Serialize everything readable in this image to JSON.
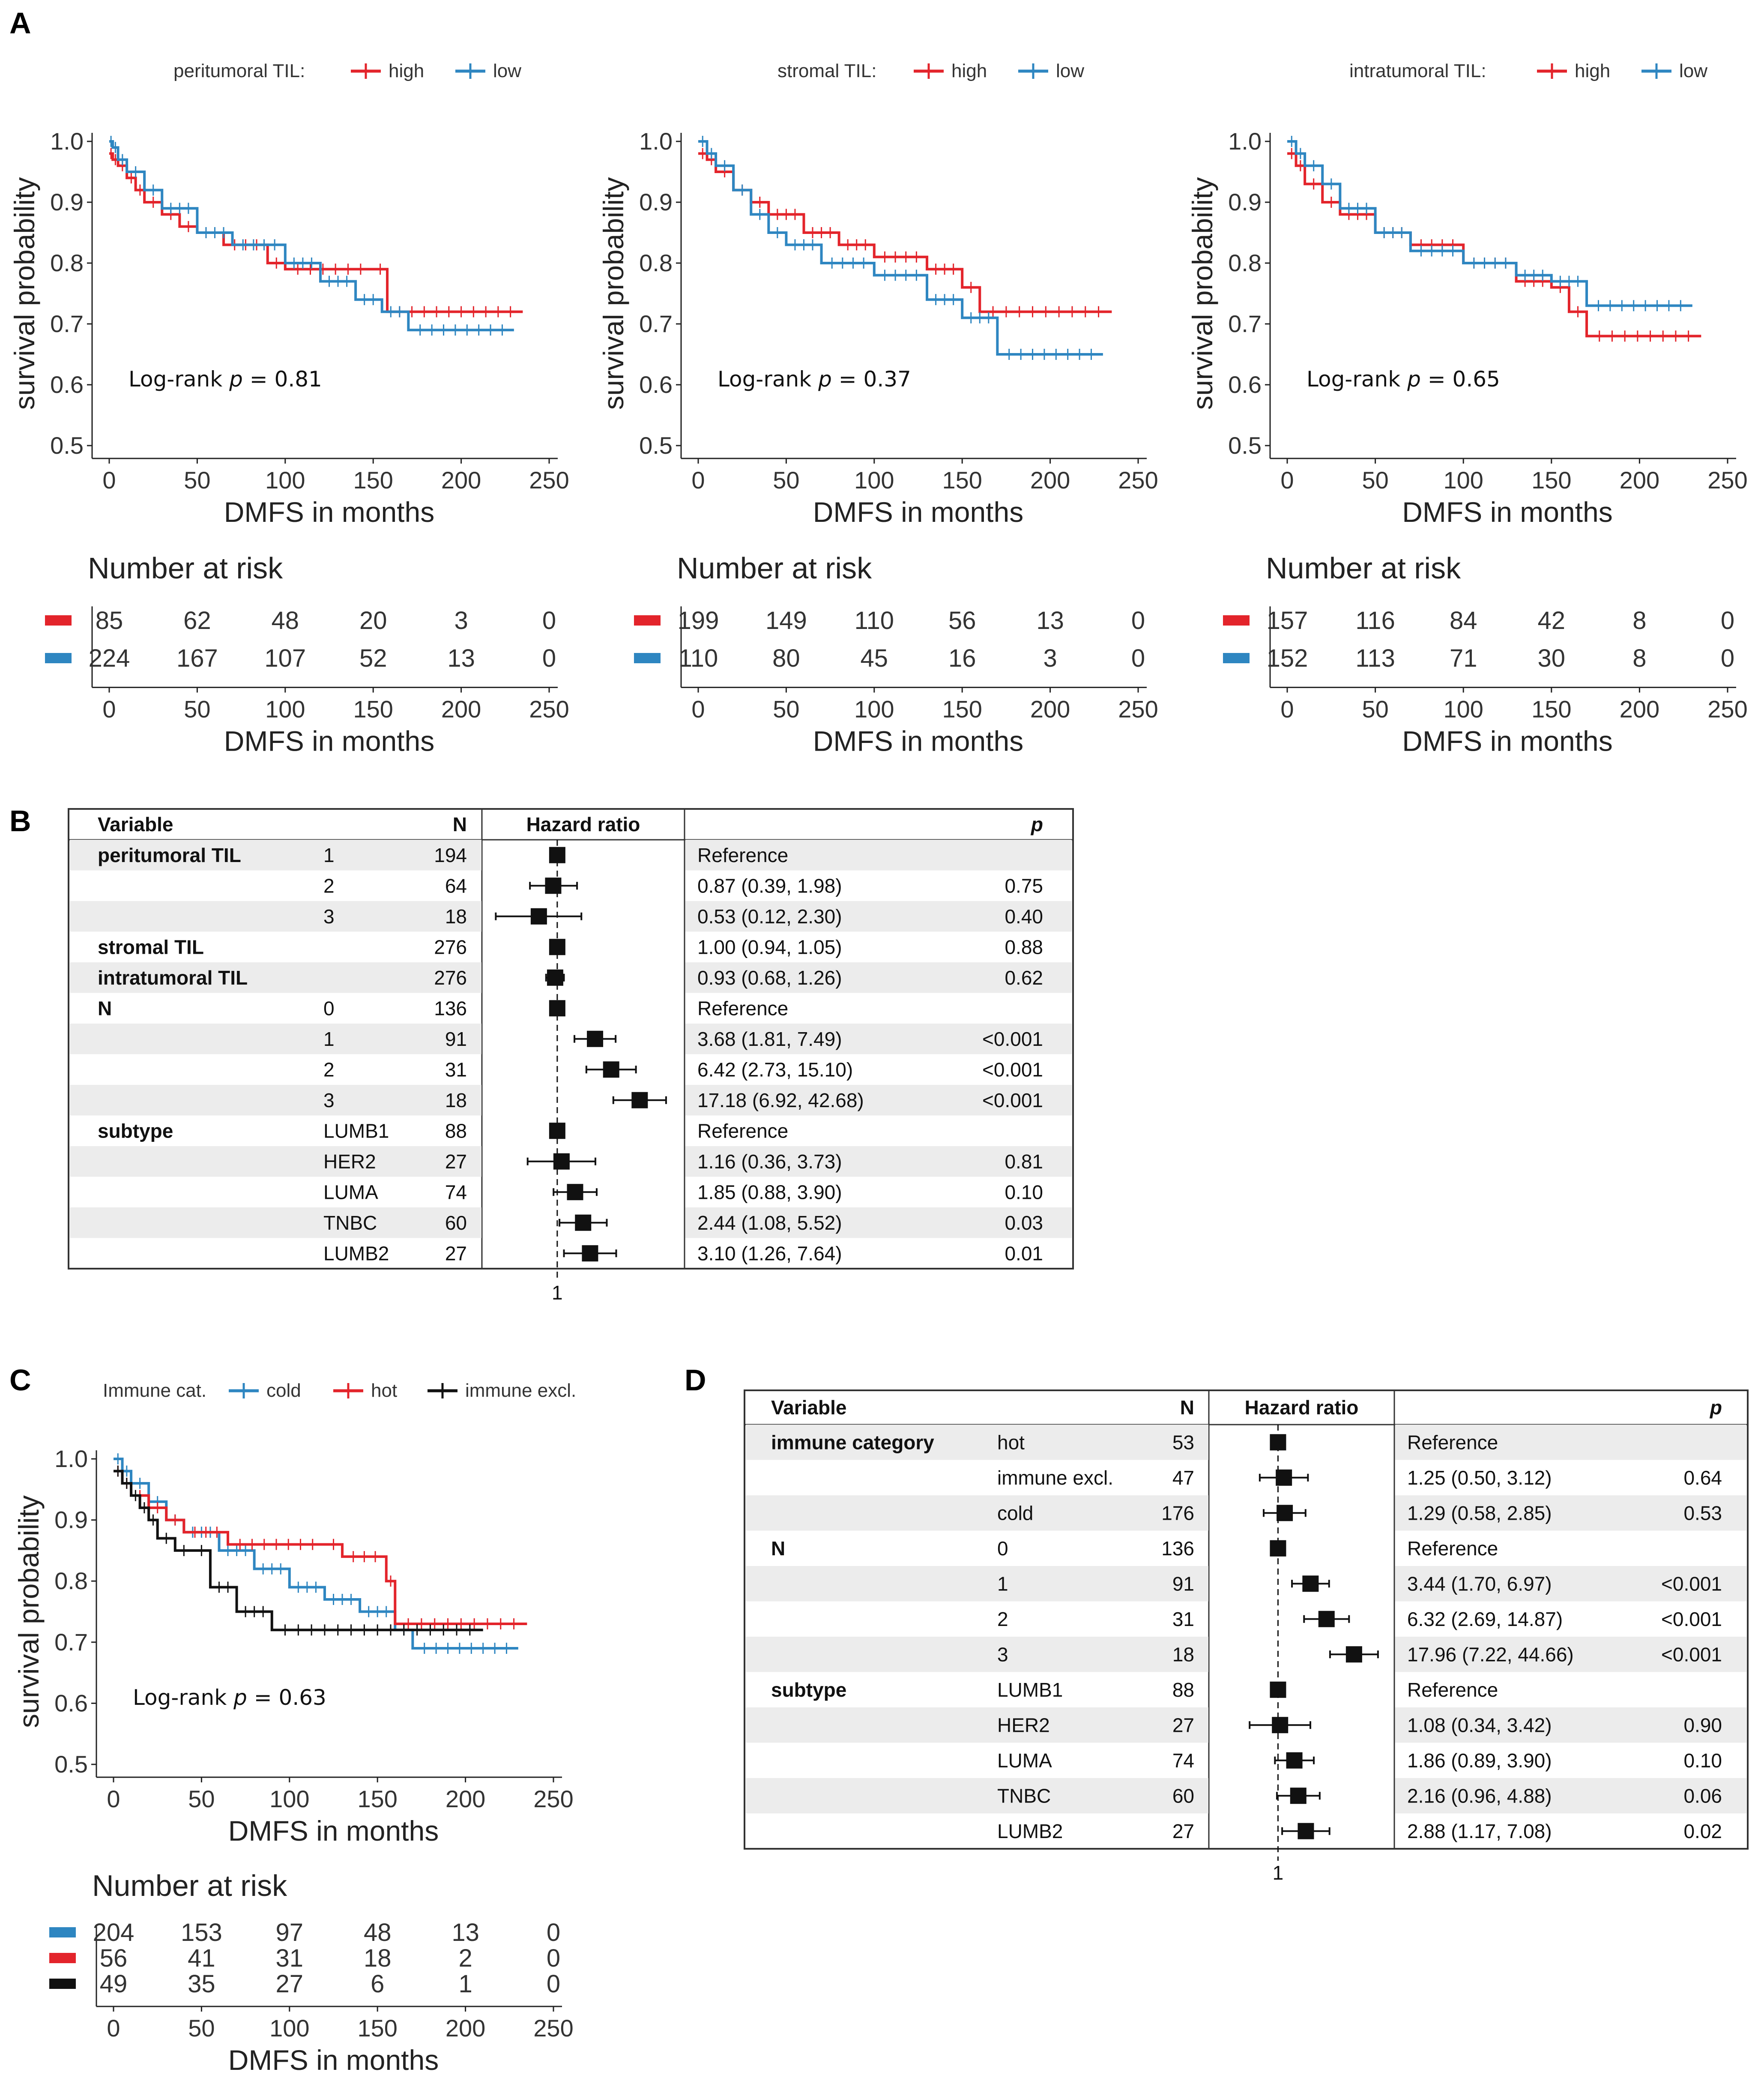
{
  "panel_letters": [
    "A",
    "B",
    "C",
    "D"
  ],
  "chart_data": [
    {
      "type": "line",
      "panel": "A",
      "legend_title": "peritumoral TIL:",
      "xlabel": "DMFS in months",
      "ylabel": "survival probability",
      "xticks": [
        0,
        50,
        100,
        150,
        200,
        250
      ],
      "yticks": [
        0.5,
        0.6,
        0.7,
        0.8,
        0.9,
        1.0
      ],
      "ytick_labels": [
        "0.5",
        "0.6",
        "0.7",
        "0.8",
        "0.9",
        "1.0"
      ],
      "xlim": [
        0,
        250
      ],
      "ylim": [
        0.5,
        1.0
      ],
      "annotation": {
        "prefix": "Log-rank ",
        "italic": "p",
        "suffix": " = 0.81"
      },
      "series": [
        {
          "name": "high",
          "color": "#e3242b",
          "x": [
            0,
            2,
            5,
            10,
            15,
            20,
            30,
            40,
            50,
            65,
            90,
            100,
            150,
            158,
            235
          ],
          "y": [
            0.98,
            0.97,
            0.96,
            0.94,
            0.92,
            0.9,
            0.88,
            0.86,
            0.85,
            0.83,
            0.8,
            0.79,
            0.79,
            0.72,
            0.72
          ]
        },
        {
          "name": "low",
          "color": "#2e86c1",
          "x": [
            0,
            2,
            5,
            10,
            20,
            30,
            50,
            70,
            100,
            120,
            140,
            155,
            170,
            230
          ],
          "y": [
            1.0,
            0.99,
            0.97,
            0.95,
            0.92,
            0.89,
            0.85,
            0.83,
            0.8,
            0.77,
            0.74,
            0.72,
            0.69,
            0.69
          ]
        }
      ],
      "risk_table": {
        "title": "Number at risk",
        "xticks": [
          0,
          50,
          100,
          150,
          200,
          250
        ],
        "rows": [
          {
            "name": "high",
            "color": "#e3242b",
            "values": [
              "85",
              "62",
              "48",
              "20",
              "3",
              "0"
            ]
          },
          {
            "name": "low",
            "color": "#2e86c1",
            "values": [
              "224",
              "167",
              "107",
              "52",
              "13",
              "0"
            ]
          }
        ]
      }
    },
    {
      "type": "line",
      "panel": "A",
      "legend_title": "stromal TIL:",
      "xlabel": "DMFS in months",
      "ylabel": "survival probability",
      "xticks": [
        0,
        50,
        100,
        150,
        200,
        250
      ],
      "yticks": [
        0.5,
        0.6,
        0.7,
        0.8,
        0.9,
        1.0
      ],
      "ytick_labels": [
        "0.5",
        "0.6",
        "0.7",
        "0.8",
        "0.9",
        "1.0"
      ],
      "xlim": [
        0,
        250
      ],
      "ylim": [
        0.5,
        1.0
      ],
      "annotation": {
        "prefix": "Log-rank ",
        "italic": "p",
        "suffix": " = 0.37"
      },
      "series": [
        {
          "name": "high",
          "color": "#e3242b",
          "x": [
            0,
            5,
            10,
            20,
            30,
            40,
            60,
            80,
            100,
            130,
            150,
            160,
            235
          ],
          "y": [
            0.98,
            0.97,
            0.95,
            0.92,
            0.9,
            0.88,
            0.85,
            0.83,
            0.81,
            0.79,
            0.76,
            0.72,
            0.72
          ]
        },
        {
          "name": "low",
          "color": "#2e86c1",
          "x": [
            0,
            5,
            10,
            20,
            30,
            40,
            50,
            70,
            100,
            130,
            150,
            170,
            230
          ],
          "y": [
            1.0,
            0.98,
            0.96,
            0.92,
            0.88,
            0.85,
            0.83,
            0.8,
            0.78,
            0.74,
            0.71,
            0.65,
            0.65
          ]
        }
      ],
      "risk_table": {
        "title": "Number at risk",
        "xticks": [
          0,
          50,
          100,
          150,
          200,
          250
        ],
        "rows": [
          {
            "name": "high",
            "color": "#e3242b",
            "values": [
              "199",
              "149",
              "110",
              "56",
              "13",
              "0"
            ]
          },
          {
            "name": "low",
            "color": "#2e86c1",
            "values": [
              "110",
              "80",
              "45",
              "16",
              "3",
              "0"
            ]
          }
        ]
      }
    },
    {
      "type": "line",
      "panel": "A",
      "legend_title": "intratumoral TIL:",
      "xlabel": "DMFS in months",
      "ylabel": "survival probability",
      "xticks": [
        0,
        50,
        100,
        150,
        200,
        250
      ],
      "yticks": [
        0.5,
        0.6,
        0.7,
        0.8,
        0.9,
        1.0
      ],
      "ytick_labels": [
        "0.5",
        "0.6",
        "0.7",
        "0.8",
        "0.9",
        "1.0"
      ],
      "xlim": [
        0,
        250
      ],
      "ylim": [
        0.5,
        1.0
      ],
      "annotation": {
        "prefix": "Log-rank ",
        "italic": "p",
        "suffix": " = 0.65"
      },
      "series": [
        {
          "name": "high",
          "color": "#e3242b",
          "x": [
            0,
            5,
            10,
            20,
            30,
            50,
            70,
            100,
            130,
            150,
            160,
            170,
            235
          ],
          "y": [
            0.98,
            0.96,
            0.93,
            0.9,
            0.88,
            0.85,
            0.83,
            0.8,
            0.77,
            0.76,
            0.72,
            0.68,
            0.68
          ]
        },
        {
          "name": "low",
          "color": "#2e86c1",
          "x": [
            0,
            5,
            10,
            20,
            30,
            50,
            70,
            100,
            130,
            150,
            170,
            230
          ],
          "y": [
            1.0,
            0.98,
            0.96,
            0.93,
            0.89,
            0.85,
            0.82,
            0.8,
            0.78,
            0.77,
            0.73,
            0.73
          ]
        }
      ],
      "risk_table": {
        "title": "Number at risk",
        "xticks": [
          0,
          50,
          100,
          150,
          200,
          250
        ],
        "rows": [
          {
            "name": "high",
            "color": "#e3242b",
            "values": [
              "157",
              "116",
              "84",
              "42",
              "8",
              "0"
            ]
          },
          {
            "name": "low",
            "color": "#2e86c1",
            "values": [
              "152",
              "113",
              "71",
              "30",
              "8",
              "0"
            ]
          }
        ]
      }
    },
    {
      "type": "table",
      "panel": "B",
      "headers": {
        "variable": "Variable",
        "n": "N",
        "hr": "Hazard ratio",
        "p": "p"
      },
      "ref_label": "1",
      "log_range": [
        0.1,
        60
      ],
      "rows": [
        {
          "variable": "peritumoral TIL",
          "level": "1",
          "n": "194",
          "est": 1.0,
          "lo": 1.0,
          "hi": 1.0,
          "text": "Reference",
          "p": ""
        },
        {
          "variable": "",
          "level": "2",
          "n": "64",
          "est": 0.87,
          "lo": 0.39,
          "hi": 1.98,
          "text": "0.87 (0.39, 1.98)",
          "p": "0.75"
        },
        {
          "variable": "",
          "level": "3",
          "n": "18",
          "est": 0.53,
          "lo": 0.12,
          "hi": 2.3,
          "text": "0.53 (0.12, 2.30)",
          "p": "0.40"
        },
        {
          "variable": "stromal TIL",
          "level": "",
          "n": "276",
          "est": 1.0,
          "lo": 0.94,
          "hi": 1.05,
          "text": "1.00 (0.94, 1.05)",
          "p": "0.88"
        },
        {
          "variable": "intratumoral TIL",
          "level": "",
          "n": "276",
          "est": 0.93,
          "lo": 0.68,
          "hi": 1.26,
          "text": "0.93 (0.68, 1.26)",
          "p": "0.62"
        },
        {
          "variable": "N",
          "level": "0",
          "n": "136",
          "est": 1.0,
          "lo": 1.0,
          "hi": 1.0,
          "text": "Reference",
          "p": ""
        },
        {
          "variable": "",
          "level": "1",
          "n": "91",
          "est": 3.68,
          "lo": 1.81,
          "hi": 7.49,
          "text": "3.68 (1.81, 7.49)",
          "p": "<0.001"
        },
        {
          "variable": "",
          "level": "2",
          "n": "31",
          "est": 6.42,
          "lo": 2.73,
          "hi": 15.1,
          "text": "6.42 (2.73, 15.10)",
          "p": "<0.001"
        },
        {
          "variable": "",
          "level": "3",
          "n": "18",
          "est": 17.18,
          "lo": 6.92,
          "hi": 42.68,
          "text": "17.18 (6.92, 42.68)",
          "p": "<0.001"
        },
        {
          "variable": "subtype",
          "level": "LUMB1",
          "n": "88",
          "est": 1.0,
          "lo": 1.0,
          "hi": 1.0,
          "text": "Reference",
          "p": ""
        },
        {
          "variable": "",
          "level": "HER2",
          "n": "27",
          "est": 1.16,
          "lo": 0.36,
          "hi": 3.73,
          "text": "1.16 (0.36, 3.73)",
          "p": "0.81"
        },
        {
          "variable": "",
          "level": "LUMA",
          "n": "74",
          "est": 1.85,
          "lo": 0.88,
          "hi": 3.9,
          "text": "1.85 (0.88, 3.90)",
          "p": "0.10"
        },
        {
          "variable": "",
          "level": "TNBC",
          "n": "60",
          "est": 2.44,
          "lo": 1.08,
          "hi": 5.52,
          "text": "2.44 (1.08, 5.52)",
          "p": "0.03"
        },
        {
          "variable": "",
          "level": "LUMB2",
          "n": "27",
          "est": 3.1,
          "lo": 1.26,
          "hi": 7.64,
          "text": "3.10 (1.26, 7.64)",
          "p": "0.01"
        }
      ]
    },
    {
      "type": "line",
      "panel": "C",
      "legend_title": "Immune cat.",
      "xlabel": "DMFS in months",
      "ylabel": "survival probability",
      "xticks": [
        0,
        50,
        100,
        150,
        200,
        250
      ],
      "yticks": [
        0.5,
        0.6,
        0.7,
        0.8,
        0.9,
        1.0
      ],
      "ytick_labels": [
        "0.5",
        "0.6",
        "0.7",
        "0.8",
        "0.9",
        "1.0"
      ],
      "xlim": [
        0,
        250
      ],
      "ylim": [
        0.5,
        1.0
      ],
      "annotation": {
        "prefix": "Log-rank ",
        "italic": "p",
        "suffix": " = 0.63"
      },
      "series": [
        {
          "name": "cold",
          "color": "#2e86c1",
          "x": [
            0,
            5,
            10,
            20,
            30,
            40,
            60,
            80,
            100,
            120,
            140,
            160,
            170,
            230
          ],
          "y": [
            1.0,
            0.98,
            0.96,
            0.93,
            0.9,
            0.88,
            0.85,
            0.82,
            0.79,
            0.77,
            0.75,
            0.72,
            0.69,
            0.69
          ]
        },
        {
          "name": "hot",
          "color": "#e3242b",
          "x": [
            0,
            5,
            10,
            20,
            30,
            40,
            65,
            120,
            130,
            155,
            160,
            235
          ],
          "y": [
            0.98,
            0.96,
            0.94,
            0.92,
            0.9,
            0.88,
            0.86,
            0.86,
            0.84,
            0.8,
            0.73,
            0.73
          ]
        },
        {
          "name": "immune excl.",
          "color": "#111111",
          "x": [
            0,
            5,
            10,
            15,
            20,
            25,
            35,
            45,
            55,
            70,
            90,
            210
          ],
          "y": [
            0.98,
            0.96,
            0.94,
            0.92,
            0.9,
            0.87,
            0.85,
            0.85,
            0.79,
            0.75,
            0.72,
            0.72
          ]
        }
      ],
      "risk_table": {
        "title": "Number at risk",
        "xticks": [
          0,
          50,
          100,
          150,
          200,
          250
        ],
        "rows": [
          {
            "name": "cold",
            "color": "#2e86c1",
            "values": [
              "204",
              "153",
              "97",
              "48",
              "13",
              "0"
            ]
          },
          {
            "name": "hot",
            "color": "#e3242b",
            "values": [
              "56",
              "41",
              "31",
              "18",
              "2",
              "0"
            ]
          },
          {
            "name": "immune excl.",
            "color": "#111111",
            "values": [
              "49",
              "35",
              "27",
              "6",
              "1",
              "0"
            ]
          }
        ]
      }
    },
    {
      "type": "table",
      "panel": "D",
      "headers": {
        "variable": "Variable",
        "n": "N",
        "hr": "Hazard ratio",
        "p": "p"
      },
      "ref_label": "1",
      "log_range": [
        0.1,
        60
      ],
      "rows": [
        {
          "variable": "immune category",
          "level": "hot",
          "n": "53",
          "est": 1.0,
          "lo": 1.0,
          "hi": 1.0,
          "text": "Reference",
          "p": ""
        },
        {
          "variable": "",
          "level": "immune excl.",
          "n": "47",
          "est": 1.25,
          "lo": 0.5,
          "hi": 3.12,
          "text": "1.25 (0.50, 3.12)",
          "p": "0.64"
        },
        {
          "variable": "",
          "level": "cold",
          "n": "176",
          "est": 1.29,
          "lo": 0.58,
          "hi": 2.85,
          "text": "1.29 (0.58, 2.85)",
          "p": "0.53"
        },
        {
          "variable": "N",
          "level": "0",
          "n": "136",
          "est": 1.0,
          "lo": 1.0,
          "hi": 1.0,
          "text": "Reference",
          "p": ""
        },
        {
          "variable": "",
          "level": "1",
          "n": "91",
          "est": 3.44,
          "lo": 1.7,
          "hi": 6.97,
          "text": "3.44 (1.70, 6.97)",
          "p": "<0.001"
        },
        {
          "variable": "",
          "level": "2",
          "n": "31",
          "est": 6.32,
          "lo": 2.69,
          "hi": 14.87,
          "text": "6.32 (2.69, 14.87)",
          "p": "<0.001"
        },
        {
          "variable": "",
          "level": "3",
          "n": "18",
          "est": 17.96,
          "lo": 7.22,
          "hi": 44.66,
          "text": "17.96 (7.22, 44.66)",
          "p": "<0.001"
        },
        {
          "variable": "subtype",
          "level": "LUMB1",
          "n": "88",
          "est": 1.0,
          "lo": 1.0,
          "hi": 1.0,
          "text": "Reference",
          "p": ""
        },
        {
          "variable": "",
          "level": "HER2",
          "n": "27",
          "est": 1.08,
          "lo": 0.34,
          "hi": 3.42,
          "text": "1.08 (0.34, 3.42)",
          "p": "0.90"
        },
        {
          "variable": "",
          "level": "LUMA",
          "n": "74",
          "est": 1.86,
          "lo": 0.89,
          "hi": 3.9,
          "text": "1.86 (0.89, 3.90)",
          "p": "0.10"
        },
        {
          "variable": "",
          "level": "TNBC",
          "n": "60",
          "est": 2.16,
          "lo": 0.96,
          "hi": 4.88,
          "text": "2.16 (0.96, 4.88)",
          "p": "0.06"
        },
        {
          "variable": "",
          "level": "LUMB2",
          "n": "27",
          "est": 2.88,
          "lo": 1.17,
          "hi": 7.08,
          "text": "2.88 (1.17, 7.08)",
          "p": "0.02"
        }
      ]
    }
  ]
}
